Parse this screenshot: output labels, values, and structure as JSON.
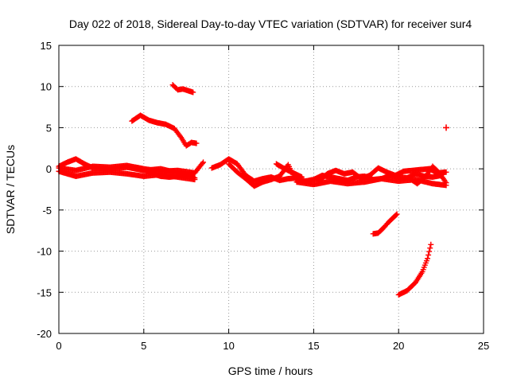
{
  "chart_data": {
    "type": "scatter",
    "title": "Day 022 of 2018, Sidereal Day-to-day VTEC variation (SDTVAR) for receiver sur4",
    "xlabel": "GPS time / hours",
    "ylabel": "SDTVAR / TECUs",
    "xlim": [
      0,
      25
    ],
    "ylim": [
      -20,
      15
    ],
    "xticks": [
      0,
      5,
      10,
      15,
      20,
      25
    ],
    "yticks": [
      15,
      10,
      5,
      0,
      -5,
      -10,
      -15,
      -20
    ],
    "grid": true,
    "marker": "+",
    "series": [
      {
        "name": "SDTVAR",
        "color": "#ff0000",
        "segments": [
          {
            "x": [
              0.0,
              0.5,
              1.0,
              1.5,
              2.0,
              3.0,
              4.0,
              5.0,
              6.0,
              7.0,
              7.5,
              8.0,
              8.5
            ],
            "y": [
              0.3,
              0.8,
              1.2,
              0.6,
              0.1,
              0.0,
              0.2,
              -0.2,
              0.0,
              -0.5,
              -0.8,
              -0.5,
              0.8
            ]
          },
          {
            "x": [
              0.0,
              0.5,
              1.0,
              2.0,
              3.0,
              4.0,
              5.0,
              6.0,
              7.0,
              8.0
            ],
            "y": [
              -0.3,
              -0.6,
              -0.9,
              -0.5,
              -0.4,
              -0.6,
              -0.9,
              -0.7,
              -1.0,
              -1.3
            ]
          },
          {
            "x": [
              0.0,
              1.0,
              2.0,
              3.0,
              4.0,
              5.0,
              6.0,
              7.0,
              8.0
            ],
            "y": [
              0.1,
              -0.2,
              0.3,
              0.2,
              0.4,
              0.0,
              -0.3,
              -0.2,
              -0.5
            ]
          },
          {
            "x": [
              4.5,
              5.0,
              5.5,
              6.0,
              6.5,
              7.0,
              7.5,
              8.0
            ],
            "y": [
              0.2,
              -0.1,
              -0.6,
              -0.9,
              -1.0,
              -0.9,
              -0.6,
              -1.1
            ]
          },
          {
            "x": [
              4.3,
              4.8,
              5.3,
              5.8,
              6.3,
              6.8,
              7.2,
              7.5,
              7.8,
              8.1
            ],
            "y": [
              5.8,
              6.5,
              5.9,
              5.6,
              5.4,
              4.9,
              3.8,
              2.8,
              3.2,
              3.1
            ]
          },
          {
            "x": [
              6.7,
              7.0,
              7.3,
              7.6,
              7.9
            ],
            "y": [
              10.2,
              9.6,
              9.7,
              9.5,
              9.3
            ]
          },
          {
            "x": [
              9.0,
              9.5,
              10.0,
              10.5,
              11.0,
              11.5,
              12.0,
              12.5,
              13.0,
              13.5,
              14.0,
              14.5,
              15.0,
              15.5,
              16.0,
              16.5,
              17.0,
              17.5,
              18.0,
              18.5,
              19.0,
              19.5,
              20.0,
              20.5,
              21.0,
              21.5,
              22.0,
              22.5
            ],
            "y": [
              0.1,
              0.5,
              1.2,
              0.6,
              -0.8,
              -1.5,
              -1.2,
              -1.0,
              -1.4,
              -1.2,
              -1.1,
              -1.5,
              -1.3,
              -0.8,
              -1.0,
              -1.2,
              -1.4,
              -1.0,
              -0.9,
              -1.3,
              -1.2,
              -0.8,
              -1.0,
              -1.1,
              -0.6,
              -0.9,
              -1.0,
              -0.8
            ]
          },
          {
            "x": [
              10.0,
              10.5,
              11.0,
              11.5,
              12.0,
              12.5,
              13.0,
              13.5,
              14.0,
              15.0,
              16.0,
              17.0,
              18.0,
              19.0,
              20.0,
              21.0,
              22.0,
              22.8
            ],
            "y": [
              0.6,
              -0.4,
              -1.2,
              -2.1,
              -1.6,
              -1.3,
              -0.9,
              0.5,
              -1.6,
              -1.9,
              -1.5,
              -1.8,
              -1.6,
              -1.2,
              -1.5,
              -1.3,
              -1.8,
              -2.0
            ]
          },
          {
            "x": [
              12.8,
              13.3,
              13.8,
              14.3
            ],
            "y": [
              0.6,
              0.0,
              -0.5,
              -1.0
            ]
          },
          {
            "x": [
              15.3,
              15.8,
              16.3,
              16.8,
              17.3,
              17.8,
              18.3,
              18.8,
              19.3,
              19.8,
              20.3,
              20.8,
              21.3,
              21.8,
              22.3,
              22.8
            ],
            "y": [
              -1.5,
              -0.6,
              -0.2,
              -0.6,
              -0.4,
              -1.2,
              -0.8,
              0.1,
              -0.4,
              -0.8,
              -0.3,
              -0.2,
              -0.1,
              0.0,
              -0.5,
              -0.4
            ]
          },
          {
            "x": [
              20.6,
              21.1,
              21.6,
              22.0,
              22.4,
              22.8
            ],
            "y": [
              -1.1,
              -1.8,
              -0.9,
              0.3,
              -0.5,
              -1.7
            ]
          },
          {
            "x": [
              18.5,
              18.8,
              19.1,
              19.4,
              19.7,
              19.9
            ],
            "y": [
              -7.9,
              -7.8,
              -7.2,
              -6.5,
              -5.9,
              -5.5
            ]
          },
          {
            "x": [
              20.0,
              20.5,
              21.0,
              21.4,
              21.7,
              21.9
            ],
            "y": [
              -15.3,
              -14.8,
              -13.8,
              -12.5,
              -10.9,
              -9.2
            ]
          },
          {
            "x": [
              22.8
            ],
            "y": [
              5.0
            ]
          }
        ]
      }
    ]
  }
}
